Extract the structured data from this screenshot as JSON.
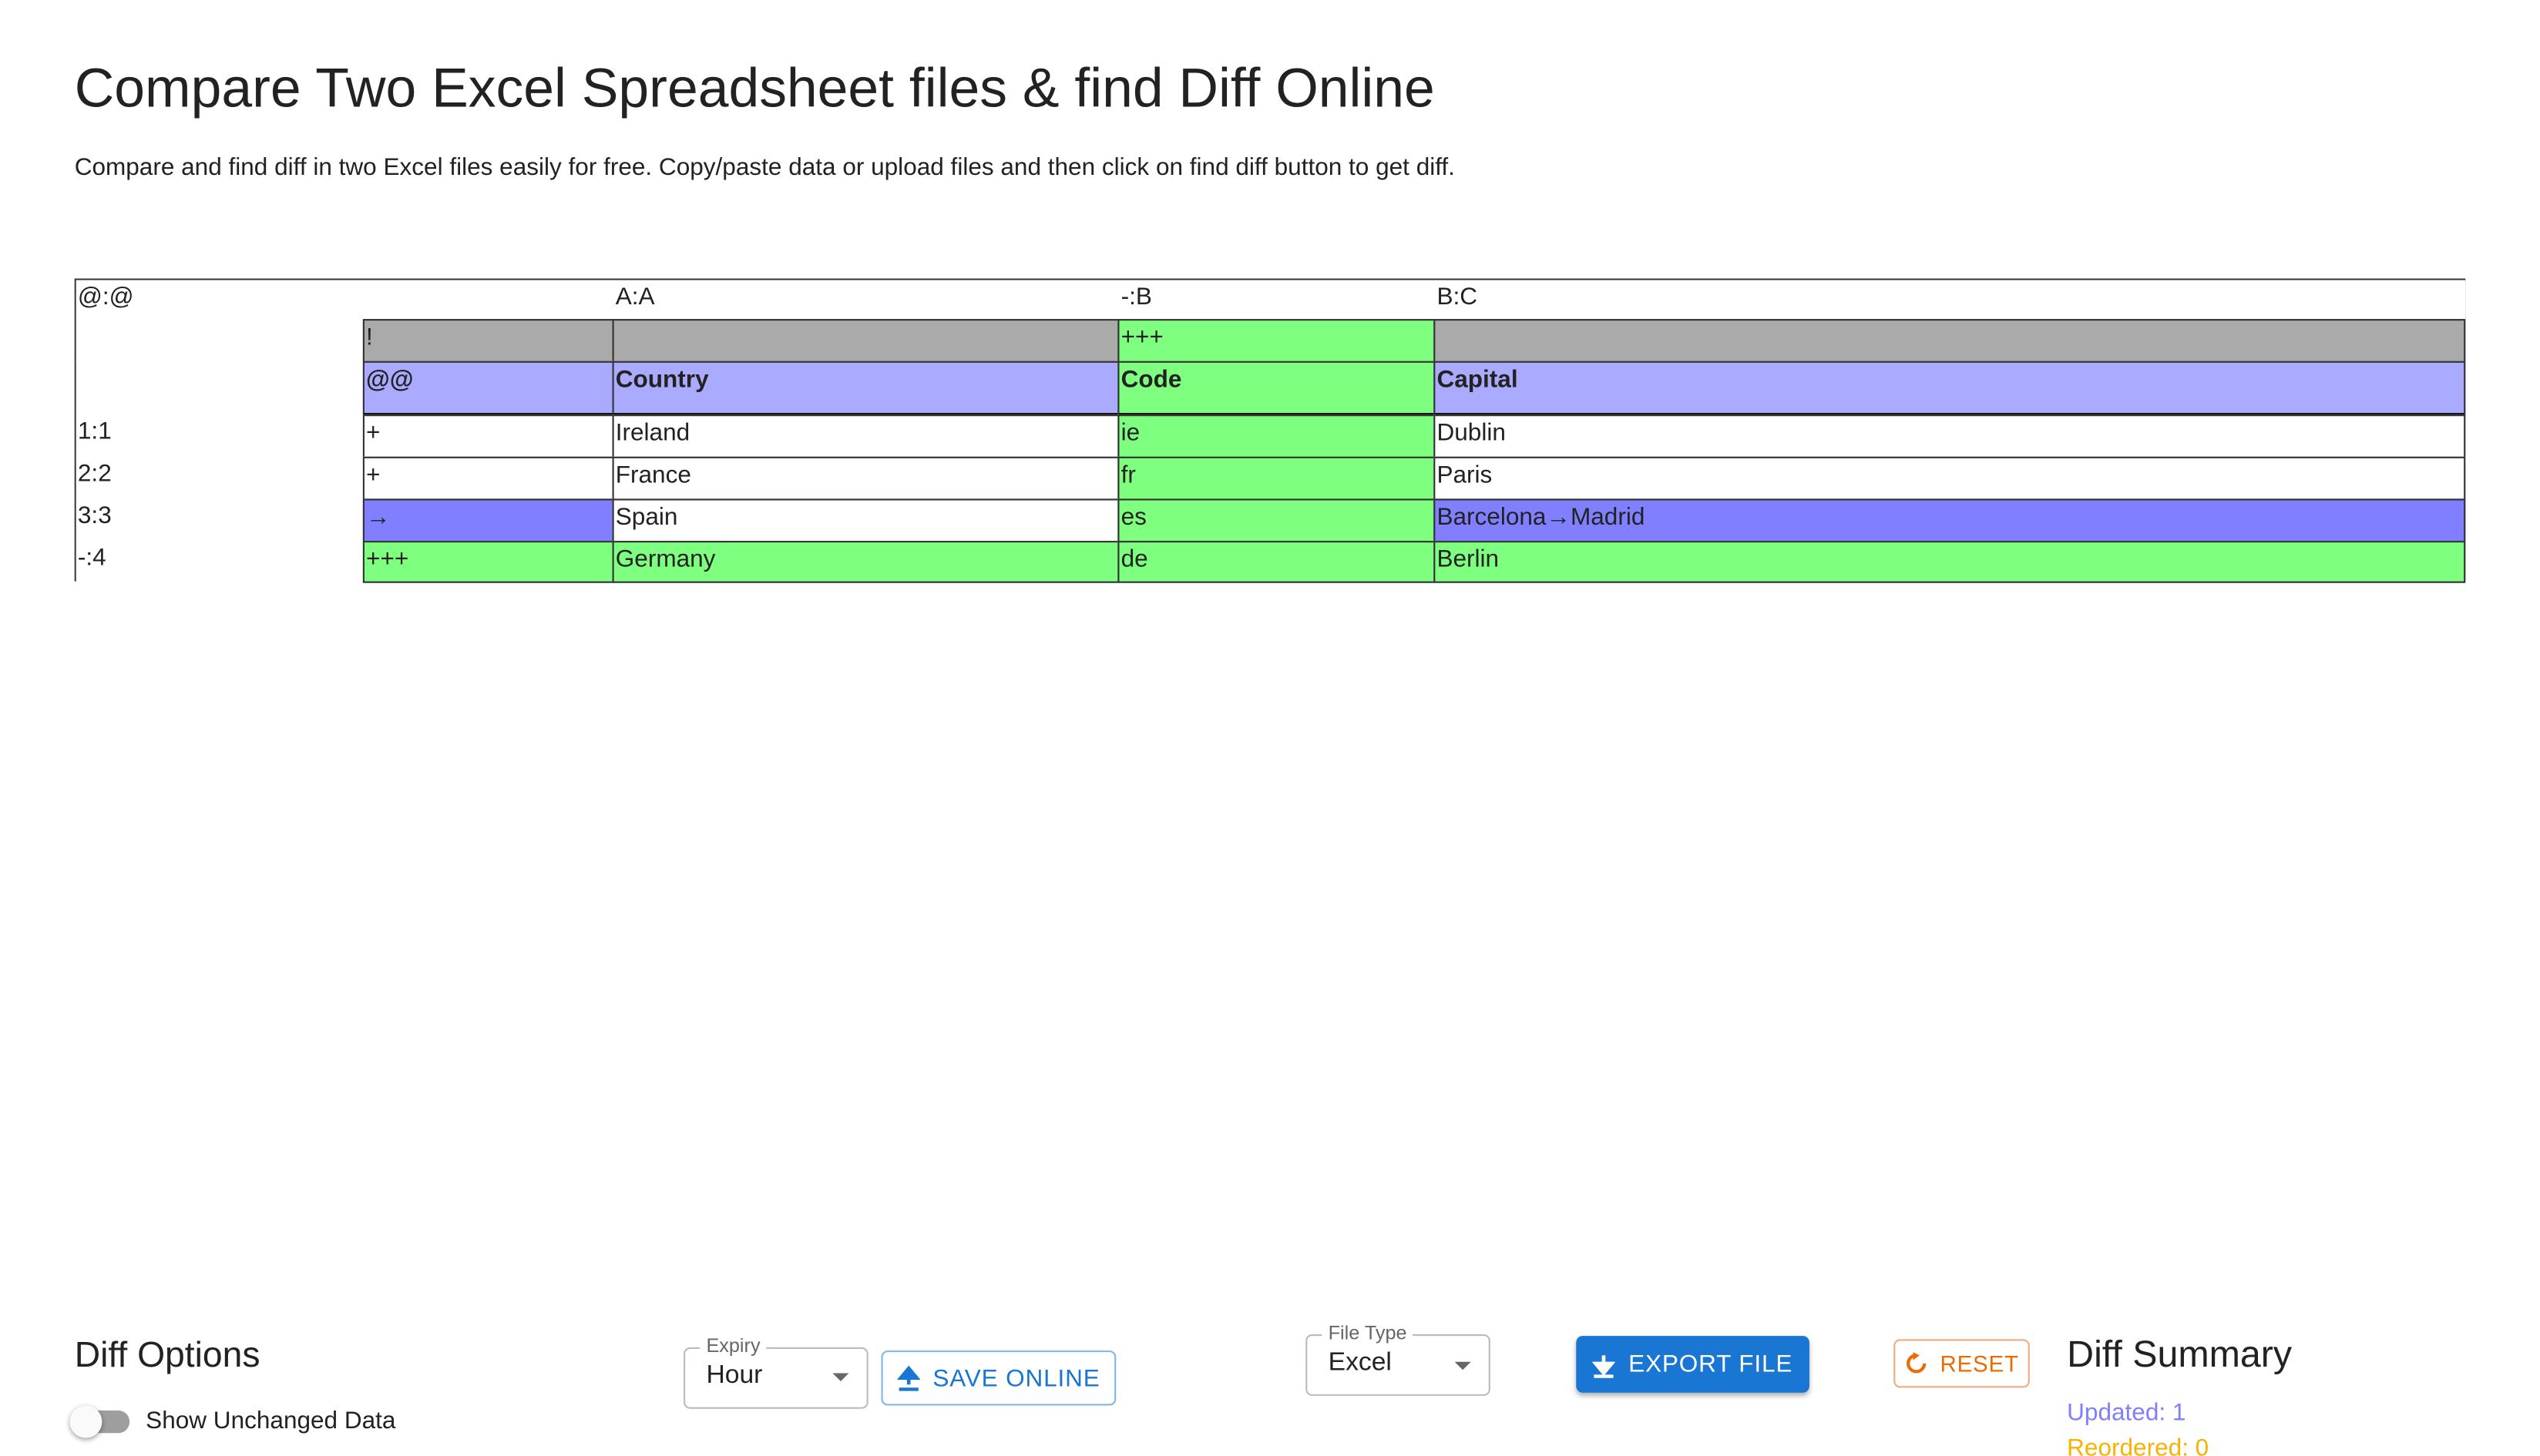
{
  "header": {
    "title": "Compare Two Excel Spreadsheet files & find Diff Online",
    "description": "Compare and find diff in two Excel files easily for free. Copy/paste data or upload files and then click on find diff button to get diff."
  },
  "table": {
    "rows": [
      [
        "@:@",
        null,
        "A:A",
        "-:B",
        "B:C"
      ],
      [
        null,
        "!",
        null,
        "+++",
        null
      ],
      [
        null,
        "@@",
        "Country",
        "Code",
        "Capital"
      ],
      [
        "1:1",
        "+",
        "Ireland",
        "ie",
        "Dublin"
      ],
      [
        "2:2",
        "+",
        "France",
        "fr",
        "Paris"
      ],
      [
        "3:3",
        "→",
        "Spain",
        "es",
        "Barcelona→Madrid"
      ],
      [
        "-:4",
        "+++",
        "Germany",
        "de",
        "Berlin"
      ]
    ]
  },
  "options": {
    "title": "Diff Options",
    "toggle_label": "Show Unchanged Data"
  },
  "expiry": {
    "label": "Expiry",
    "value": "Hour"
  },
  "save_button": "SAVE ONLINE",
  "file_type": {
    "label": "File Type",
    "value": "Excel"
  },
  "export_button": "EXPORT FILE",
  "reset_button": "RESET",
  "summary": {
    "title": "Diff Summary",
    "items": [
      "Updated: 1",
      "Reordered: 0"
    ]
  }
}
